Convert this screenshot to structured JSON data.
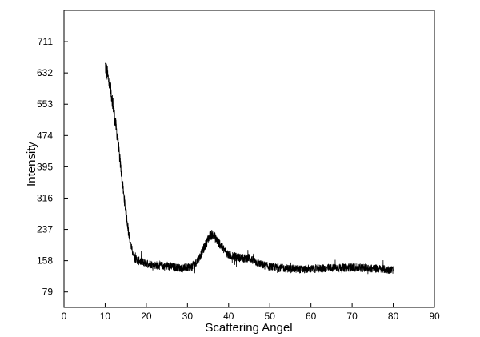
{
  "chart_data": {
    "type": "line",
    "title": "",
    "xlabel": "Scattering Angel",
    "ylabel": "Intensity",
    "xlim": [
      0,
      90
    ],
    "ylim": [
      40,
      790
    ],
    "xticks": [
      0,
      10,
      20,
      30,
      40,
      50,
      60,
      70,
      80,
      90
    ],
    "yticks": [
      79,
      158,
      237,
      316,
      395,
      474,
      553,
      632,
      711
    ],
    "grid": false,
    "legend": "none",
    "line_color": "#000000",
    "series": [
      {
        "x": [
          10.0,
          10.5,
          11.0,
          11.5,
          12.0,
          12.5,
          13.0,
          13.5,
          14.0,
          14.5,
          15.0,
          15.5,
          16.0,
          16.5,
          17.0,
          17.5,
          18.0,
          19.0,
          20.0,
          22.0,
          24.0,
          26.0,
          28.0,
          30.0,
          31.0,
          32.0,
          33.0,
          34.0,
          35.0,
          35.5,
          36.0,
          36.5,
          37.0,
          38.0,
          39.0,
          40.0,
          42.0,
          44.0,
          45.0,
          46.0,
          48.0,
          50.0,
          52.0,
          55.0,
          58.0,
          60.0,
          62.0,
          64.0,
          66.0,
          68.0,
          70.0,
          72.0,
          74.0,
          76.0,
          78.0,
          80.0
        ],
        "y": [
          650,
          630,
          605,
          580,
          545,
          505,
          470,
          420,
          375,
          325,
          285,
          245,
          212,
          185,
          170,
          162,
          158,
          155,
          152,
          147,
          145,
          143,
          140,
          140,
          143,
          152,
          168,
          190,
          212,
          222,
          224,
          220,
          212,
          198,
          184,
          172,
          167,
          163,
          166,
          158,
          148,
          143,
          140,
          138,
          136,
          137,
          138,
          139,
          140,
          140,
          141,
          140,
          139,
          138,
          136,
          135
        ]
      }
    ]
  }
}
